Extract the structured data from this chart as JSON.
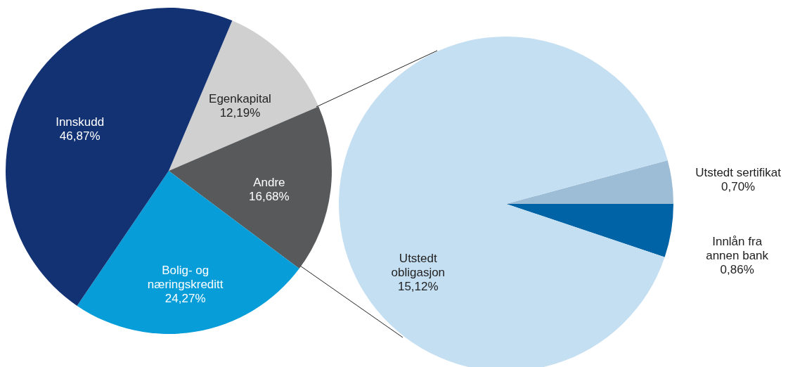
{
  "chart_data": [
    {
      "type": "pie",
      "categories": [
        "Egenkapital",
        "Andre",
        "Bolig- og\nnæringskreditt",
        "Innskudd"
      ],
      "values": [
        12.19,
        16.68,
        24.27,
        46.87
      ],
      "colors": [
        "#d0d0d0",
        "#58595b",
        "#079dd9",
        "#123274"
      ],
      "value_labels": [
        "12,19%",
        "16,68%",
        "24,27%",
        "46,87%"
      ]
    },
    {
      "type": "pie",
      "categories": [
        "Utstedt sertifikat",
        "Innlån fra\nannen bank",
        "Utstedt\nobligasjon"
      ],
      "values": [
        0.7,
        0.86,
        15.12
      ],
      "colors": [
        "#9dbdd6",
        "#0063a6",
        "#c5dff2"
      ],
      "value_labels": [
        "0,70%",
        "0,86%",
        "15,12%"
      ]
    }
  ]
}
